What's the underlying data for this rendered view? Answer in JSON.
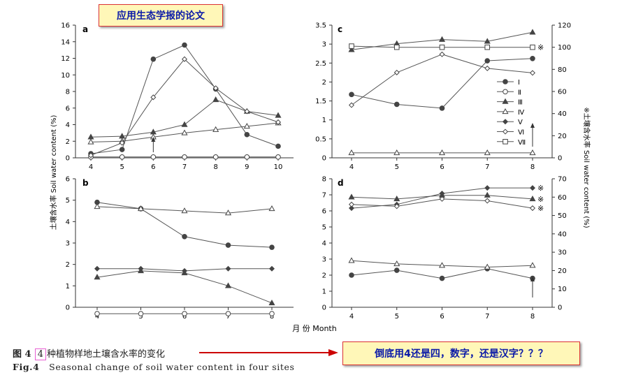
{
  "notes": {
    "top": "应用生态学报的论文",
    "bottom": "倒底用4还是四，数字，还是汉字？？？"
  },
  "caption": {
    "zh_prefix": "图 4",
    "zh_highlight": "4",
    "zh_text": "种植物样地土壤含水率的变化",
    "en_prefix": "Fig.4",
    "en_text": "Seasonal change of soil water content in four sites"
  },
  "axis_labels": {
    "y_left": "土壤含水率 Soil water content (%)",
    "y_right": "※土壤含水率 Soil water content (%)",
    "x": "月 份 Month"
  },
  "legend": [
    {
      "label": "Ⅰ",
      "marker": "filled-circle"
    },
    {
      "label": "Ⅱ",
      "marker": "open-circle"
    },
    {
      "label": "Ⅲ",
      "marker": "filled-triangle"
    },
    {
      "label": "Ⅳ",
      "marker": "open-triangle"
    },
    {
      "label": "Ⅴ",
      "marker": "filled-diamond"
    },
    {
      "label": "Ⅵ",
      "marker": "open-diamond"
    },
    {
      "label": "Ⅶ",
      "marker": "open-square"
    }
  ],
  "chart_data": [
    {
      "type": "line",
      "panel": "a",
      "x": [
        4,
        5,
        6,
        7,
        8,
        9,
        10
      ],
      "ylim": [
        0,
        16
      ],
      "yticks": [
        0,
        2,
        4,
        6,
        8,
        10,
        12,
        14,
        16
      ],
      "series": [
        {
          "name": "Ⅰ",
          "marker": "filled-circle",
          "values": [
            0.5,
            1.0,
            11.9,
            13.6,
            8.3,
            2.8,
            1.4
          ]
        },
        {
          "name": "Ⅱ",
          "marker": "open-circle",
          "values": [
            0.1,
            0.1,
            0.1,
            0.1,
            0.1,
            0.1,
            0.1
          ]
        },
        {
          "name": "Ⅲ",
          "marker": "filled-triangle",
          "values": [
            2.5,
            2.6,
            3.1,
            4.0,
            7.0,
            5.6,
            5.1
          ]
        },
        {
          "name": "Ⅳ",
          "marker": "open-triangle",
          "values": [
            1.9,
            2.0,
            2.5,
            3.0,
            3.4,
            3.8,
            4.2
          ]
        },
        {
          "name": "Ⅵ",
          "marker": "open-diamond",
          "values": [
            0.3,
            1.8,
            7.3,
            11.9,
            8.4,
            5.6,
            4.3
          ]
        }
      ],
      "annotation": {
        "type": "arrow",
        "x": 6
      }
    },
    {
      "type": "line",
      "panel": "b",
      "x": [
        4,
        5,
        6,
        7,
        8
      ],
      "ylim": [
        0,
        6
      ],
      "yticks": [
        0,
        1,
        2,
        3,
        4,
        5,
        6
      ],
      "series": [
        {
          "name": "Ⅰ",
          "marker": "filled-circle",
          "values": [
            4.9,
            4.6,
            3.3,
            2.9,
            2.8
          ]
        },
        {
          "name": "Ⅱ",
          "marker": "open-circle",
          "values": [
            -0.3,
            -0.3,
            -0.3,
            -0.3,
            -0.3
          ]
        },
        {
          "name": "Ⅲ",
          "marker": "filled-triangle",
          "values": [
            1.4,
            1.7,
            1.6,
            1.0,
            0.2
          ]
        },
        {
          "name": "Ⅳ",
          "marker": "open-triangle",
          "values": [
            4.7,
            4.6,
            4.5,
            4.4,
            4.6
          ]
        },
        {
          "name": "Ⅴ",
          "marker": "filled-diamond",
          "values": [
            1.8,
            1.8,
            1.7,
            1.8,
            1.8
          ]
        }
      ]
    },
    {
      "type": "line",
      "panel": "c",
      "x": [
        4,
        5,
        6,
        7,
        8
      ],
      "ylim": [
        0,
        3.5
      ],
      "yticks": [
        0,
        0.5,
        1.0,
        1.5,
        2.0,
        2.5,
        3.0,
        3.5
      ],
      "ylim_right": [
        0,
        120
      ],
      "yticks_right": [
        0,
        20,
        40,
        60,
        80,
        100,
        120
      ],
      "series": [
        {
          "name": "Ⅰ",
          "marker": "filled-circle",
          "values": [
            1.67,
            1.41,
            1.31,
            2.56,
            2.62
          ]
        },
        {
          "name": "Ⅲ",
          "marker": "filled-triangle",
          "values": [
            2.85,
            3.01,
            3.12,
            3.07,
            3.31
          ]
        },
        {
          "name": "Ⅳ",
          "marker": "open-triangle",
          "values": [
            0.13,
            0.13,
            0.13,
            0.13,
            0.13
          ]
        },
        {
          "name": "Ⅵ",
          "marker": "open-diamond",
          "values": [
            1.39,
            2.25,
            2.73,
            2.36,
            2.24
          ]
        },
        {
          "name": "Ⅶ",
          "marker": "open-square",
          "axis": "right",
          "values": [
            101,
            100,
            100,
            100,
            100
          ]
        }
      ],
      "annotation": {
        "type": "arrow",
        "x": 8
      }
    },
    {
      "type": "line",
      "panel": "d",
      "x": [
        4,
        5,
        6,
        7,
        8
      ],
      "ylim": [
        0,
        8
      ],
      "yticks": [
        0,
        1,
        2,
        3,
        4,
        5,
        6,
        7,
        8
      ],
      "ylim_right": [
        0,
        70
      ],
      "yticks_right": [
        0,
        10,
        20,
        30,
        40,
        50,
        60,
        70
      ],
      "series": [
        {
          "name": "Ⅰ",
          "marker": "filled-circle",
          "values": [
            2.0,
            2.3,
            1.8,
            2.4,
            1.8
          ]
        },
        {
          "name": "Ⅲ",
          "marker": "filled-triangle",
          "axis": "right",
          "values": [
            60,
            59,
            61,
            61,
            59
          ]
        },
        {
          "name": "Ⅳ",
          "marker": "open-triangle",
          "values": [
            2.9,
            2.7,
            2.6,
            2.5,
            2.6
          ]
        },
        {
          "name": "Ⅴ",
          "marker": "filled-diamond",
          "axis": "right",
          "values": [
            54,
            56,
            62,
            65,
            65
          ]
        },
        {
          "name": "Ⅵ",
          "marker": "open-diamond",
          "axis": "right",
          "values": [
            56,
            55,
            59,
            58,
            54
          ]
        }
      ],
      "annotation": {
        "type": "arrow",
        "x": 8
      }
    }
  ]
}
